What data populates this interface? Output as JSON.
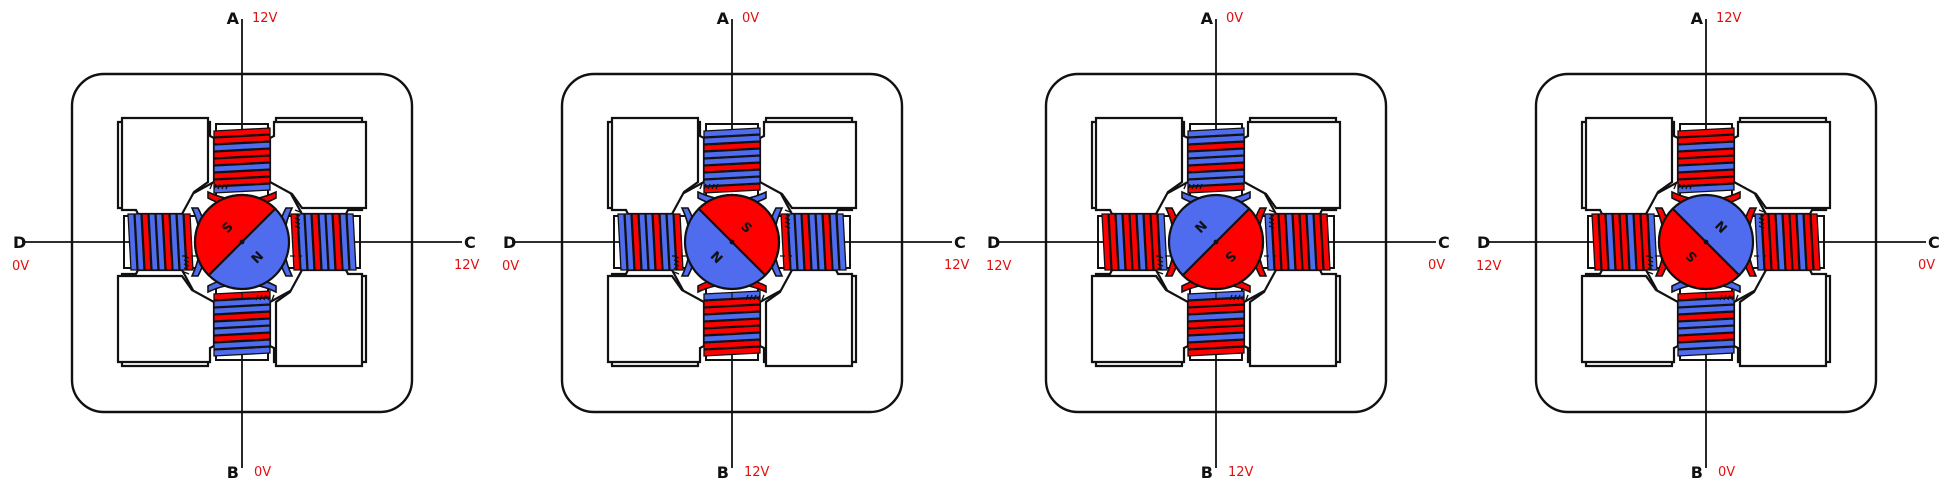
{
  "colors": {
    "red": "#ff0000",
    "blue": "#4f6bee",
    "line": "#111111",
    "voltage": "#e01010"
  },
  "panels": [
    {
      "terminals": {
        "A": {
          "letter": "A",
          "voltage": "12V"
        },
        "B": {
          "letter": "B",
          "voltage": "0V"
        },
        "C": {
          "letter": "C",
          "voltage": "12V"
        },
        "D": {
          "letter": "D",
          "voltage": "0V"
        }
      },
      "coils": {
        "top": "red",
        "bottom": "blue",
        "left": "blue",
        "right": "blue"
      },
      "rotor": {
        "north_direction_deg": 45,
        "north_label": "N",
        "south_label": "S"
      }
    },
    {
      "terminals": {
        "A": {
          "letter": "A",
          "voltage": "0V"
        },
        "B": {
          "letter": "B",
          "voltage": "12V"
        },
        "C": {
          "letter": "C",
          "voltage": "12V"
        },
        "D": {
          "letter": "D",
          "voltage": "0V"
        }
      },
      "coils": {
        "top": "blue",
        "bottom": "red",
        "left": "blue",
        "right": "blue"
      },
      "rotor": {
        "north_direction_deg": 135,
        "north_label": "N",
        "south_label": "S"
      }
    },
    {
      "terminals": {
        "A": {
          "letter": "A",
          "voltage": "0V"
        },
        "B": {
          "letter": "B",
          "voltage": "12V"
        },
        "C": {
          "letter": "C",
          "voltage": "0V"
        },
        "D": {
          "letter": "D",
          "voltage": "12V"
        }
      },
      "coils": {
        "top": "blue",
        "bottom": "red",
        "left": "red",
        "right": "red"
      },
      "rotor": {
        "north_direction_deg": 225,
        "north_label": "N",
        "south_label": "S"
      }
    },
    {
      "terminals": {
        "A": {
          "letter": "A",
          "voltage": "12V"
        },
        "B": {
          "letter": "B",
          "voltage": "0V"
        },
        "C": {
          "letter": "C",
          "voltage": "0V"
        },
        "D": {
          "letter": "D",
          "voltage": "12V"
        }
      },
      "coils": {
        "top": "red",
        "bottom": "blue",
        "left": "red",
        "right": "red"
      },
      "rotor": {
        "north_direction_deg": 315,
        "north_label": "N",
        "south_label": "S"
      }
    }
  ]
}
